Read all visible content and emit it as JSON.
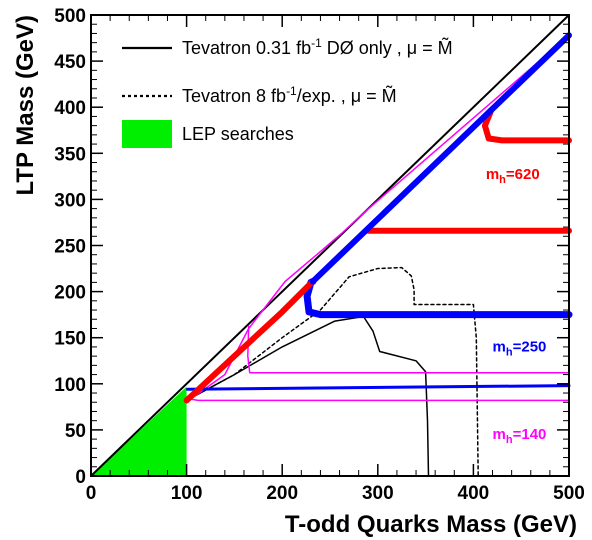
{
  "chart_data": {
    "type": "line",
    "xlabel": "T-odd Quarks  Mass (GeV)",
    "ylabel": "LTP Mass (GeV)",
    "xlim": [
      0,
      500
    ],
    "ylim": [
      0,
      500
    ],
    "x_ticks": [
      "0",
      "100",
      "200",
      "300",
      "400",
      "500"
    ],
    "y_ticks": [
      "0",
      "50",
      "100",
      "150",
      "200",
      "250",
      "300",
      "350",
      "400",
      "450",
      "500"
    ],
    "grid": false,
    "legend_position": "top-left",
    "legend": [
      {
        "text": "Tevatron 0.31 fb",
        "sup": "-1",
        "after": " DØ only , μ = M̃",
        "style": "solid",
        "color": "#000000"
      },
      {
        "text": "Tevatron 8 fb",
        "sup": "-1",
        "after": "/exp. , μ = M̃",
        "style": "dotted",
        "color": "#000000"
      },
      {
        "text": "LEP searches",
        "style": "fill",
        "color": "#00ee00"
      }
    ],
    "series": [
      {
        "key": "diagonal",
        "color": "#000000",
        "style": "solid",
        "width": 2,
        "points": [
          [
            0,
            0
          ],
          [
            500,
            500
          ]
        ]
      },
      {
        "key": "lower-diagonal",
        "color": "#000000",
        "style": "solid",
        "width": 1.2,
        "points": [
          [
            100,
            80
          ],
          [
            500,
            480
          ]
        ]
      },
      {
        "key": "tevatron-031",
        "color": "#000000",
        "style": "solid",
        "width": 1.5,
        "points": [
          [
            100,
            82
          ],
          [
            150,
            110
          ],
          [
            200,
            140
          ],
          [
            255,
            168
          ],
          [
            285,
            173
          ],
          [
            295,
            157
          ],
          [
            302,
            135
          ],
          [
            340,
            125
          ],
          [
            350,
            113
          ],
          [
            352,
            60
          ],
          [
            353,
            0
          ]
        ]
      },
      {
        "key": "tevatron-8",
        "color": "#000000",
        "style": "dotted",
        "width": 1.5,
        "points": [
          [
            100,
            82
          ],
          [
            150,
            110
          ],
          [
            200,
            150
          ],
          [
            240,
            180
          ],
          [
            270,
            216
          ],
          [
            300,
            225
          ],
          [
            325,
            226
          ],
          [
            335,
            217
          ],
          [
            338,
            202
          ],
          [
            338,
            186
          ],
          [
            400,
            186
          ],
          [
            403,
            150
          ],
          [
            404,
            80
          ],
          [
            405,
            0
          ]
        ]
      },
      {
        "key": "mh140",
        "color": "#ff00ff",
        "style": "solid",
        "width": 1.5,
        "points": [
          [
            101,
            81
          ],
          [
            140,
            110
          ],
          [
            165,
            160
          ],
          [
            203,
            211
          ],
          [
            235,
            239
          ],
          [
            262,
            263
          ],
          [
            287,
            287
          ],
          [
            500,
            478
          ]
        ],
        "extra": [
          [
            [
              165,
              163
            ],
            [
              164,
              130
            ],
            [
              166,
              112
            ],
            [
              500,
              112
            ]
          ],
          [
            [
              101,
              84
            ],
            [
              112,
              82
            ],
            [
              500,
              82
            ]
          ]
        ]
      },
      {
        "key": "mh250",
        "color": "#0000ff",
        "style": "solid",
        "width": 3,
        "points": [
          [
            101,
            94
          ],
          [
            500,
            98
          ]
        ]
      },
      {
        "key": "mh250-contour",
        "color": "#0000ff",
        "style": "solid",
        "width": 7,
        "points": [
          [
            500,
            175
          ],
          [
            240,
            175
          ],
          [
            228,
            178
          ],
          [
            226,
            195
          ],
          [
            230,
            210
          ],
          [
            232,
            211
          ]
        ]
      },
      {
        "key": "mh620",
        "color": "#ff0000",
        "style": "solid",
        "width": 6,
        "points": [
          [
            100,
            82
          ],
          [
            150,
            130
          ],
          [
            200,
            178
          ],
          [
            231,
            210
          ]
        ]
      },
      {
        "key": "mh620-lower",
        "color": "#ff0000",
        "style": "solid",
        "width": 6,
        "points": [
          [
            290,
            266
          ],
          [
            500,
            266
          ]
        ]
      },
      {
        "key": "mh620-upper",
        "color": "#ff0000",
        "style": "solid",
        "width": 6,
        "points": [
          [
            418,
            395
          ],
          [
            412,
            380
          ],
          [
            416,
            366
          ],
          [
            430,
            364
          ],
          [
            500,
            364
          ]
        ]
      },
      {
        "key": "mh-blue-diagonal",
        "color": "#0000ff",
        "style": "solid",
        "width": 6,
        "points": [
          [
            232,
            211
          ],
          [
            500,
            478
          ]
        ]
      }
    ],
    "lep_region": {
      "color": "#00ee00",
      "x_max": 100,
      "points": [
        [
          0,
          0
        ],
        [
          100,
          97
        ],
        [
          100,
          0
        ]
      ]
    },
    "annotations": [
      {
        "key": "mh620",
        "base": "m",
        "sub": "h",
        "value": "=620",
        "x": 413,
        "y": 322,
        "color": "#ff0000"
      },
      {
        "key": "mh250",
        "base": "m",
        "sub": "h",
        "value": "=250",
        "x": 420,
        "y": 135,
        "color": "#0000ff"
      },
      {
        "key": "mh140",
        "base": "m",
        "sub": "h",
        "value": "=140",
        "x": 420,
        "y": 40,
        "color": "#ff00ff"
      }
    ]
  }
}
